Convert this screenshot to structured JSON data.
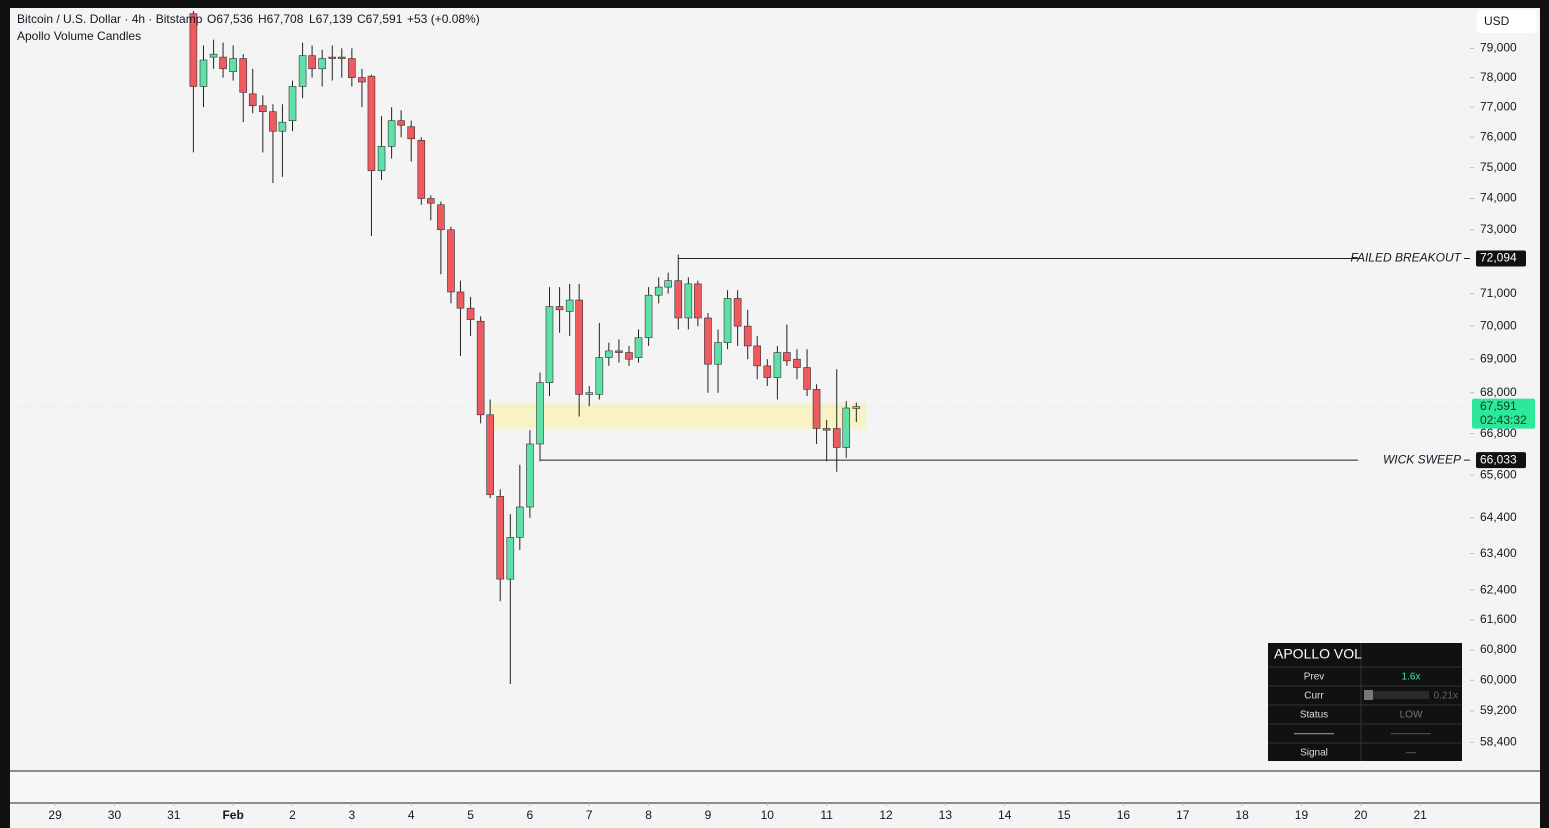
{
  "chart_data": {
    "type": "candlestick",
    "title": "Bitcoin / U.S. Dollar · 4h · Bitstamp",
    "ohlc_header": [
      "O67,536",
      "H67,708",
      "L67,139",
      "C67,591",
      "+53 (+0.08%)"
    ],
    "subtitle": "Apollo Volume Candles",
    "currency": "USD",
    "x": [
      2.33,
      2.5,
      2.67,
      2.83,
      3,
      3.17,
      3.33,
      3.5,
      3.67,
      3.83,
      4,
      4.17,
      4.33,
      4.5,
      4.67,
      4.83,
      5,
      5.17,
      5.33,
      5.5,
      5.67,
      5.83,
      6,
      6.17,
      6.33,
      6.5,
      6.67,
      6.83,
      7,
      7.17,
      7.33,
      7.5,
      7.67,
      7.83,
      8,
      8.17,
      8.33,
      8.5,
      8.67,
      8.83,
      9,
      9.17,
      9.33,
      9.5,
      9.67,
      9.83,
      10,
      10.17,
      10.33,
      10.5,
      10.67,
      10.83,
      11,
      11.17,
      11.33,
      11.5,
      11.67,
      11.83,
      12,
      12.17,
      12.33,
      12.5,
      12.67,
      12.83,
      13,
      13.17,
      13.33,
      13.5
    ],
    "open": [
      80200,
      77700,
      78700,
      78700,
      78200,
      78650,
      77450,
      77050,
      76850,
      76200,
      76550,
      77700,
      78750,
      78300,
      78700,
      78700,
      78650,
      78000,
      78050,
      74900,
      75700,
      76550,
      76350,
      75900,
      74000,
      73800,
      73000,
      71050,
      70550,
      70150,
      67350,
      65000,
      62700,
      63850,
      64700,
      66500,
      68300,
      70600,
      70450,
      70800,
      67950,
      67950,
      69050,
      69250,
      69200,
      69050,
      69650,
      70950,
      71200,
      71400,
      70250,
      71300,
      70250,
      68850,
      69500,
      70850,
      70000,
      69400,
      68800,
      68450,
      69200,
      69000,
      68750,
      68100,
      66950,
      66950,
      66400,
      67536
    ],
    "high": [
      80300,
      79100,
      79300,
      79200,
      79100,
      78800,
      78300,
      77400,
      77100,
      77100,
      77900,
      79200,
      79100,
      78950,
      79100,
      79000,
      79000,
      78300,
      78100,
      76700,
      77000,
      76900,
      76550,
      76000,
      74100,
      73900,
      73100,
      71400,
      70900,
      70300,
      67800,
      65200,
      64500,
      65900,
      66900,
      68600,
      71200,
      71200,
      71300,
      71300,
      68200,
      70100,
      69500,
      69600,
      69400,
      69900,
      71200,
      71500,
      71650,
      72094,
      71500,
      71400,
      70400,
      69900,
      71100,
      71100,
      70500,
      69700,
      69000,
      69400,
      70050,
      69300,
      69300,
      68250,
      67200,
      68700,
      67750,
      67708
    ],
    "low": [
      75500,
      77000,
      78300,
      78000,
      77900,
      76500,
      76800,
      75500,
      74500,
      74700,
      76200,
      77300,
      78000,
      77700,
      77900,
      78000,
      77700,
      77000,
      72800,
      74600,
      75300,
      76000,
      75200,
      73800,
      73300,
      71600,
      70700,
      69100,
      69700,
      67100,
      64950,
      62100,
      59900,
      63500,
      64400,
      66000,
      67900,
      69800,
      69700,
      67300,
      67600,
      67800,
      68800,
      68900,
      68800,
      68900,
      69400,
      70700,
      71000,
      69900,
      69900,
      70000,
      68000,
      68000,
      69300,
      69400,
      69000,
      68400,
      68200,
      67800,
      68800,
      68400,
      67900,
      66500,
      66000,
      65700,
      66100,
      67139
    ],
    "close": [
      77700,
      78600,
      78800,
      78300,
      78650,
      77500,
      77050,
      76850,
      76200,
      76500,
      77700,
      78750,
      78300,
      78650,
      78650,
      78650,
      78000,
      77850,
      74900,
      75700,
      76550,
      76400,
      75950,
      74000,
      73850,
      73000,
      71050,
      70550,
      70200,
      67350,
      65050,
      62700,
      63850,
      64700,
      66500,
      68300,
      70600,
      70500,
      70800,
      67950,
      68000,
      69050,
      69250,
      69200,
      69000,
      69650,
      70950,
      71200,
      71400,
      70250,
      71300,
      70250,
      68850,
      69500,
      70850,
      70000,
      69400,
      68800,
      68450,
      69200,
      68950,
      68750,
      68100,
      66950,
      66900,
      66400,
      67550,
      67591
    ],
    "up_color": "#5fe0a6",
    "down_color": "#ee5a5e",
    "log_scale": true,
    "grid": false,
    "xlim": [
      -0.76,
      23.84
    ],
    "ylim": [
      57700,
      80400
    ],
    "xticks": [
      {
        "value": 0,
        "label": "29"
      },
      {
        "value": 1,
        "label": "30"
      },
      {
        "value": 2,
        "label": "31"
      },
      {
        "value": 3,
        "label": "Feb"
      },
      {
        "value": 4,
        "label": "2"
      },
      {
        "value": 5,
        "label": "3"
      },
      {
        "value": 6,
        "label": "4"
      },
      {
        "value": 7,
        "label": "5"
      },
      {
        "value": 8,
        "label": "6"
      },
      {
        "value": 9,
        "label": "7"
      },
      {
        "value": 10,
        "label": "8"
      },
      {
        "value": 11,
        "label": "9"
      },
      {
        "value": 12,
        "label": "10"
      },
      {
        "value": 13,
        "label": "11"
      },
      {
        "value": 14,
        "label": "12"
      },
      {
        "value": 15,
        "label": "13"
      },
      {
        "value": 16,
        "label": "14"
      },
      {
        "value": 17,
        "label": "15"
      },
      {
        "value": 18,
        "label": "16"
      },
      {
        "value": 19,
        "label": "17"
      },
      {
        "value": 20,
        "label": "18"
      },
      {
        "value": 21,
        "label": "19"
      },
      {
        "value": 22,
        "label": "20"
      },
      {
        "value": 23,
        "label": "21"
      }
    ],
    "yticks": [
      {
        "value": 79000,
        "label": "79,000"
      },
      {
        "value": 78000,
        "label": "78,000"
      },
      {
        "value": 77000,
        "label": "77,000"
      },
      {
        "value": 76000,
        "label": "76,000"
      },
      {
        "value": 75000,
        "label": "75,000"
      },
      {
        "value": 74000,
        "label": "74,000"
      },
      {
        "value": 73000,
        "label": "73,000"
      },
      {
        "value": 71000,
        "label": "71,000"
      },
      {
        "value": 70000,
        "label": "70,000"
      },
      {
        "value": 69000,
        "label": "69,000"
      },
      {
        "value": 68000,
        "label": "68,000"
      },
      {
        "value": 66800,
        "label": "66,800"
      },
      {
        "value": 65600,
        "label": "65,600"
      },
      {
        "value": 64400,
        "label": "64,400"
      },
      {
        "value": 63400,
        "label": "63,400"
      },
      {
        "value": 62400,
        "label": "62,400"
      },
      {
        "value": 61600,
        "label": "61,600"
      },
      {
        "value": 60800,
        "label": "60,800"
      },
      {
        "value": 60000,
        "label": "60,000"
      },
      {
        "value": 59200,
        "label": "59,200"
      },
      {
        "value": 58400,
        "label": "58,400"
      }
    ],
    "levels": [
      {
        "label": "FAILED BREAKOUT",
        "value": 72094,
        "value_label": "72,094",
        "x_start": 10.5
      },
      {
        "label": "WICK SWEEP",
        "value": 66033,
        "value_label": "66,033",
        "x_start": 8.17
      }
    ],
    "zone": {
      "x": [
        7.33,
        13.67
      ],
      "y": [
        66950,
        67700
      ],
      "color": "#f8f3c4"
    },
    "current": {
      "value": 67591,
      "label": "67,591",
      "countdown": "02:43:32",
      "color": "#2ee89a"
    }
  },
  "panel": {
    "title": "APOLLO VOL",
    "rows": [
      [
        "Prev",
        "1.6x"
      ],
      [
        "Curr",
        "0.21x"
      ],
      [
        "Status",
        "LOW"
      ],
      [
        "————",
        "————"
      ],
      [
        "Signal",
        "—"
      ]
    ]
  }
}
